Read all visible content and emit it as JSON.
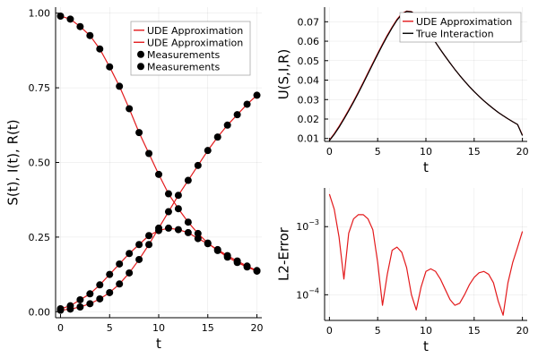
{
  "chart_data": [
    {
      "type": "line",
      "panel": "left",
      "xlabel": "t",
      "ylabel": "S(t), I(t), R(t)",
      "xlim": [
        -0.5,
        20.5
      ],
      "ylim": [
        -0.02,
        1.02
      ],
      "xticks": [
        0,
        5,
        10,
        15,
        20
      ],
      "yticks": [
        0.0,
        0.25,
        0.5,
        0.75,
        1.0
      ],
      "ytick_labels": [
        "0.00",
        "0.25",
        "0.50",
        "0.75",
        "1.00"
      ],
      "grid": true,
      "legend_position": "top-right",
      "legend": [
        {
          "label": "UDE Approximation",
          "kind": "line",
          "color": "#e31a1c"
        },
        {
          "label": "UDE Approximation",
          "kind": "line",
          "color": "#e31a1c"
        },
        {
          "label": "Measurements",
          "kind": "marker",
          "color": "#000000"
        },
        {
          "label": "Measurements",
          "kind": "marker",
          "color": "#000000"
        }
      ],
      "x": [
        0,
        1,
        2,
        3,
        4,
        5,
        6,
        7,
        8,
        9,
        10,
        11,
        12,
        13,
        14,
        15,
        16,
        17,
        18,
        19,
        20
      ],
      "series": [
        {
          "name": "UDE Approximation",
          "kind": "line",
          "color": "#e31a1c",
          "values": [
            0.99,
            0.98,
            0.955,
            0.925,
            0.88,
            0.82,
            0.755,
            0.68,
            0.6,
            0.53,
            0.46,
            0.395,
            0.345,
            0.3,
            0.262,
            0.23,
            0.205,
            0.183,
            0.165,
            0.15,
            0.136
          ]
        },
        {
          "name": "UDE Approximation",
          "kind": "line",
          "color": "#e31a1c",
          "values": [
            0.005,
            0.009,
            0.016,
            0.027,
            0.043,
            0.064,
            0.093,
            0.13,
            0.175,
            0.225,
            0.28,
            0.335,
            0.39,
            0.44,
            0.49,
            0.54,
            0.585,
            0.625,
            0.66,
            0.695,
            0.725
          ]
        },
        {
          "name": "",
          "kind": "line",
          "color": "#e31a1c",
          "values": [
            0.01,
            0.02,
            0.04,
            0.06,
            0.09,
            0.125,
            0.16,
            0.195,
            0.225,
            0.255,
            0.272,
            0.28,
            0.275,
            0.265,
            0.245,
            0.228,
            0.208,
            0.188,
            0.17,
            0.153,
            0.138
          ]
        },
        {
          "name": "Measurements",
          "kind": "marker",
          "color": "#000000",
          "values": [
            0.99,
            0.98,
            0.955,
            0.925,
            0.88,
            0.82,
            0.755,
            0.68,
            0.6,
            0.53,
            0.46,
            0.395,
            0.345,
            0.3,
            0.262,
            0.23,
            0.205,
            0.183,
            0.165,
            0.15,
            0.136
          ]
        },
        {
          "name": "Measurements",
          "kind": "marker",
          "color": "#000000",
          "values": [
            0.005,
            0.009,
            0.016,
            0.027,
            0.043,
            0.064,
            0.093,
            0.13,
            0.175,
            0.225,
            0.28,
            0.335,
            0.39,
            0.44,
            0.49,
            0.54,
            0.585,
            0.625,
            0.66,
            0.695,
            0.725
          ]
        },
        {
          "name": "",
          "kind": "marker",
          "color": "#000000",
          "values": [
            0.01,
            0.02,
            0.04,
            0.06,
            0.09,
            0.125,
            0.16,
            0.195,
            0.225,
            0.255,
            0.272,
            0.28,
            0.275,
            0.265,
            0.245,
            0.228,
            0.208,
            0.188,
            0.17,
            0.153,
            0.138
          ]
        }
      ]
    },
    {
      "type": "line",
      "panel": "top-right",
      "xlabel": "t",
      "ylabel": "U(S,I,R)",
      "xlim": [
        -0.5,
        20.5
      ],
      "ylim": [
        0.0085,
        0.0775
      ],
      "xticks": [
        0,
        5,
        10,
        15,
        20
      ],
      "yticks": [
        0.01,
        0.02,
        0.03,
        0.04,
        0.05,
        0.06,
        0.07
      ],
      "ytick_labels": [
        "0.01",
        "0.02",
        "0.03",
        "0.04",
        "0.05",
        "0.06",
        "0.07"
      ],
      "grid": true,
      "legend_position": "top-right",
      "legend": [
        {
          "label": "UDE Approximation",
          "kind": "line",
          "color": "#e31a1c"
        },
        {
          "label": "True Interaction",
          "kind": "line",
          "color": "#000000"
        }
      ],
      "x": [
        0,
        0.5,
        1,
        1.5,
        2,
        2.5,
        3,
        3.5,
        4,
        4.5,
        5,
        5.5,
        6,
        6.5,
        7,
        7.5,
        8,
        8.5,
        9,
        9.5,
        10,
        10.5,
        11,
        11.5,
        12,
        12.5,
        13,
        13.5,
        14,
        14.5,
        15,
        15.5,
        16,
        16.5,
        17,
        17.5,
        18,
        18.5,
        19,
        19.5,
        20
      ],
      "series": [
        {
          "name": "UDE Approximation",
          "color": "#e31a1c",
          "values": [
            0.0092,
            0.0125,
            0.0163,
            0.0204,
            0.0247,
            0.0292,
            0.0339,
            0.0388,
            0.0438,
            0.0488,
            0.0537,
            0.0585,
            0.0631,
            0.0673,
            0.0712,
            0.0741,
            0.0755,
            0.0752,
            0.0733,
            0.0703,
            0.0668,
            0.0631,
            0.0594,
            0.0557,
            0.0522,
            0.0488,
            0.0455,
            0.0424,
            0.0395,
            0.0367,
            0.0341,
            0.0317,
            0.0294,
            0.0273,
            0.0253,
            0.0234,
            0.0217,
            0.0201,
            0.0186,
            0.0172,
            0.0118
          ]
        },
        {
          "name": "True Interaction",
          "color": "#000000",
          "values": [
            0.0089,
            0.0121,
            0.0158,
            0.0199,
            0.0242,
            0.0287,
            0.0334,
            0.0383,
            0.0433,
            0.0483,
            0.0532,
            0.058,
            0.0626,
            0.0669,
            0.0708,
            0.0738,
            0.0753,
            0.0751,
            0.0733,
            0.0703,
            0.0668,
            0.0631,
            0.0594,
            0.0557,
            0.0522,
            0.0488,
            0.0455,
            0.0424,
            0.0395,
            0.0367,
            0.0341,
            0.0317,
            0.0294,
            0.0273,
            0.0253,
            0.0234,
            0.0217,
            0.0201,
            0.0186,
            0.0172,
            0.0115
          ]
        }
      ]
    },
    {
      "type": "line",
      "panel": "bottom-right",
      "xlabel": "t",
      "ylabel": "L2-Error",
      "yscale": "log",
      "xlim": [
        -0.5,
        20.5
      ],
      "ylim": [
        4.2e-05,
        0.0037
      ],
      "xticks": [
        0,
        5,
        10,
        15,
        20
      ],
      "yticks": [
        0.0001,
        0.001
      ],
      "ytick_labels": [
        "10^-4",
        "10^-3"
      ],
      "grid": true,
      "series": [
        {
          "name": "",
          "color": "#e31a1c",
          "x": [
            0,
            0.5,
            1.0,
            1.5,
            2.0,
            2.5,
            3.0,
            3.5,
            4.0,
            4.5,
            5.0,
            5.5,
            6.0,
            6.5,
            7.0,
            7.5,
            8.0,
            8.5,
            9.0,
            9.5,
            10.0,
            10.5,
            11.0,
            11.5,
            12.0,
            12.5,
            13.0,
            13.5,
            14.0,
            14.5,
            15.0,
            15.5,
            16.0,
            16.5,
            17.0,
            17.5,
            18.0,
            18.5,
            19.0,
            19.5,
            20.0
          ],
          "values": [
            0.003,
            0.0018,
            0.0007,
            0.00017,
            0.0008,
            0.0013,
            0.0015,
            0.0015,
            0.0013,
            0.0009,
            0.0003,
            7e-05,
            0.0002,
            0.00045,
            0.0005,
            0.00042,
            0.00025,
            0.0001,
            6e-05,
            0.00013,
            0.00022,
            0.00024,
            0.00022,
            0.00017,
            0.00012,
            8.5e-05,
            7e-05,
            7.5e-05,
            0.0001,
            0.00014,
            0.00018,
            0.00021,
            0.00022,
            0.0002,
            0.00015,
            8e-05,
            5e-05,
            0.00015,
            0.0003,
            0.0005,
            0.00085
          ]
        }
      ]
    }
  ]
}
